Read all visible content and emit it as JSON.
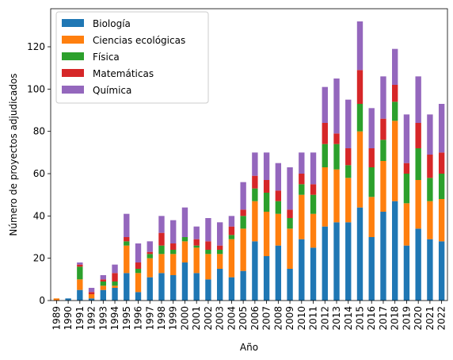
{
  "chart_data": {
    "type": "bar",
    "stacked": true,
    "xlabel": "Año",
    "ylabel": "Número de proyectos adjudicados",
    "ylim": [
      0,
      138
    ],
    "yticks": [
      0,
      20,
      40,
      60,
      80,
      100,
      120
    ],
    "legend_position": "top-left",
    "grid": false,
    "categories": [
      "1989",
      "1990",
      "1991",
      "1992",
      "1993",
      "1994",
      "1995",
      "1996",
      "1997",
      "1998",
      "1999",
      "2000",
      "2001",
      "2002",
      "2003",
      "2004",
      "2005",
      "2006",
      "2007",
      "2008",
      "2009",
      "2010",
      "2011",
      "2012",
      "2013",
      "2014",
      "2015",
      "2016",
      "2017",
      "2018",
      "2019",
      "2020",
      "2021",
      "2022"
    ],
    "series": [
      {
        "name": "Biología",
        "color": "#1f77b4",
        "values": [
          0,
          1,
          5,
          1,
          5,
          6,
          13,
          4,
          11,
          13,
          12,
          18,
          13,
          10,
          15,
          11,
          14,
          28,
          21,
          26,
          15,
          29,
          25,
          35,
          37,
          37,
          44,
          30,
          42,
          47,
          26,
          34,
          29,
          28
        ]
      },
      {
        "name": "Ciencias ecológicas",
        "color": "#ff7f0e",
        "values": [
          1,
          0,
          5,
          2,
          2,
          1,
          13,
          9,
          9,
          9,
          10,
          10,
          12,
          12,
          7,
          18,
          20,
          19,
          21,
          15,
          19,
          21,
          16,
          28,
          25,
          21,
          36,
          19,
          24,
          38,
          20,
          23,
          18,
          20
        ]
      },
      {
        "name": "Física",
        "color": "#2ca02c",
        "values": [
          0,
          0,
          6,
          0,
          2,
          2,
          2,
          2,
          2,
          4,
          2,
          2,
          1,
          2,
          2,
          2,
          6,
          6,
          9,
          6,
          5,
          5,
          9,
          11,
          12,
          6,
          13,
          14,
          10,
          9,
          14,
          15,
          11,
          12
        ]
      },
      {
        "name": "Matemáticas",
        "color": "#d62728",
        "values": [
          0,
          0,
          1,
          1,
          1,
          4,
          2,
          3,
          1,
          6,
          3,
          0,
          3,
          4,
          2,
          4,
          3,
          6,
          6,
          5,
          4,
          5,
          5,
          10,
          5,
          8,
          16,
          9,
          10,
          8,
          5,
          12,
          11,
          10
        ]
      },
      {
        "name": "Química",
        "color": "#9467bd",
        "values": [
          0,
          0,
          1,
          2,
          2,
          4,
          11,
          9,
          5,
          8,
          11,
          14,
          6,
          11,
          11,
          5,
          13,
          11,
          13,
          13,
          20,
          10,
          15,
          17,
          26,
          23,
          23,
          19,
          20,
          17,
          23,
          22,
          19,
          23
        ]
      }
    ]
  }
}
